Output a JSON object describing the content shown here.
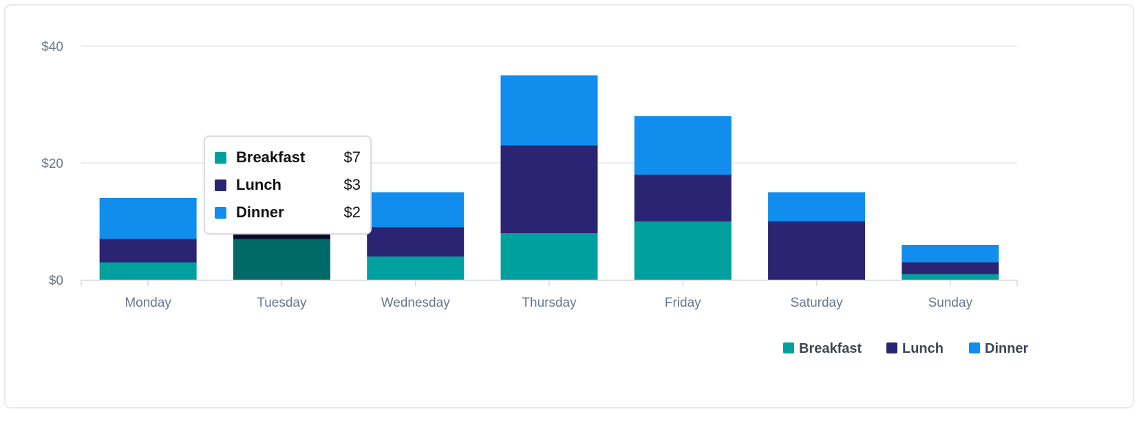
{
  "chart_data": {
    "type": "bar",
    "stacked": true,
    "categories": [
      "Monday",
      "Tuesday",
      "Wednesday",
      "Thursday",
      "Friday",
      "Saturday",
      "Sunday"
    ],
    "series": [
      {
        "name": "Breakfast",
        "color": "#00a09e",
        "values": [
          3,
          7,
          4,
          8,
          10,
          0,
          1
        ]
      },
      {
        "name": "Lunch",
        "color": "#2a2472",
        "values": [
          4,
          3,
          5,
          15,
          8,
          10,
          2
        ]
      },
      {
        "name": "Dinner",
        "color": "#118dee",
        "values": [
          7,
          2,
          6,
          12,
          10,
          5,
          3
        ]
      }
    ],
    "ylim": [
      0,
      40
    ],
    "yticks": [
      0,
      20,
      40
    ],
    "ytick_labels": [
      "$0",
      "$20",
      "$40"
    ],
    "grid": true,
    "legend": "bottom-right",
    "highlighted_category": "Tuesday",
    "highlight_colors": [
      "#006a68",
      "#0c0a2a",
      "#0b5e9e"
    ]
  },
  "tooltip": {
    "rows": [
      {
        "label": "Breakfast",
        "value": "$7",
        "color": "#00a09e"
      },
      {
        "label": "Lunch",
        "value": "$3",
        "color": "#2a2472"
      },
      {
        "label": "Dinner",
        "value": "$2",
        "color": "#118dee"
      }
    ]
  }
}
